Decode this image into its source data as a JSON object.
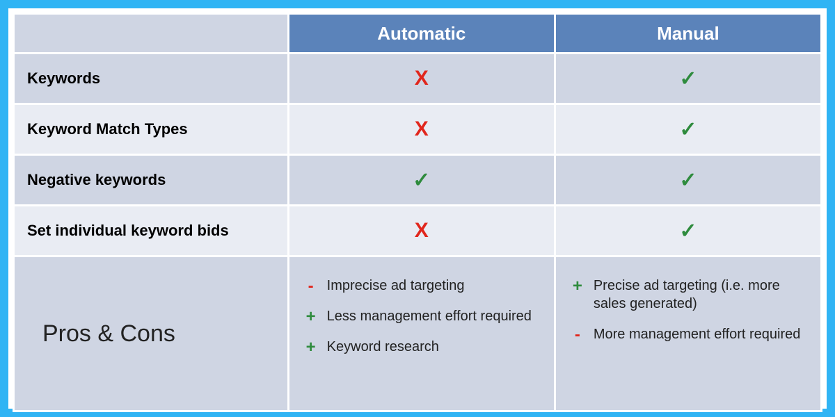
{
  "colors": {
    "page_bg": "#30b4f4",
    "frame_bg": "#ffffff",
    "table_bg": "#ffffff",
    "header_bg": "#5b83ba",
    "header_text": "#ffffff",
    "row_odd_bg": "#cfd5e3",
    "row_even_bg": "#e9ecf3",
    "proscons_bg": "#cfd5e3",
    "cross": "#e1261c",
    "check": "#2e8b3d",
    "plus": "#2e8b3d",
    "minus": "#e1261c",
    "label_text": "#000000",
    "body_text": "#222222"
  },
  "headers": {
    "automatic": "Automatic",
    "manual": "Manual"
  },
  "rows": [
    {
      "label": "Keywords",
      "automatic": "x",
      "manual": "check"
    },
    {
      "label": "Keyword Match Types",
      "automatic": "x",
      "manual": "check"
    },
    {
      "label": "Negative keywords",
      "automatic": "check",
      "manual": "check"
    },
    {
      "label": "Set individual keyword bids",
      "automatic": "x",
      "manual": "check"
    }
  ],
  "proscons": {
    "label": "Pros & Cons",
    "automatic": [
      {
        "sign": "-",
        "text": "Imprecise ad targeting"
      },
      {
        "sign": "+",
        "text": "Less management effort required"
      },
      {
        "sign": "+",
        "text": "Keyword research"
      }
    ],
    "manual": [
      {
        "sign": "+",
        "text": "Precise ad targeting (i.e. more sales generated)"
      },
      {
        "sign": "-",
        "text": "More management effort required"
      }
    ]
  },
  "glyphs": {
    "x": "X",
    "check": "✓",
    "+": "+",
    "-": "-"
  }
}
